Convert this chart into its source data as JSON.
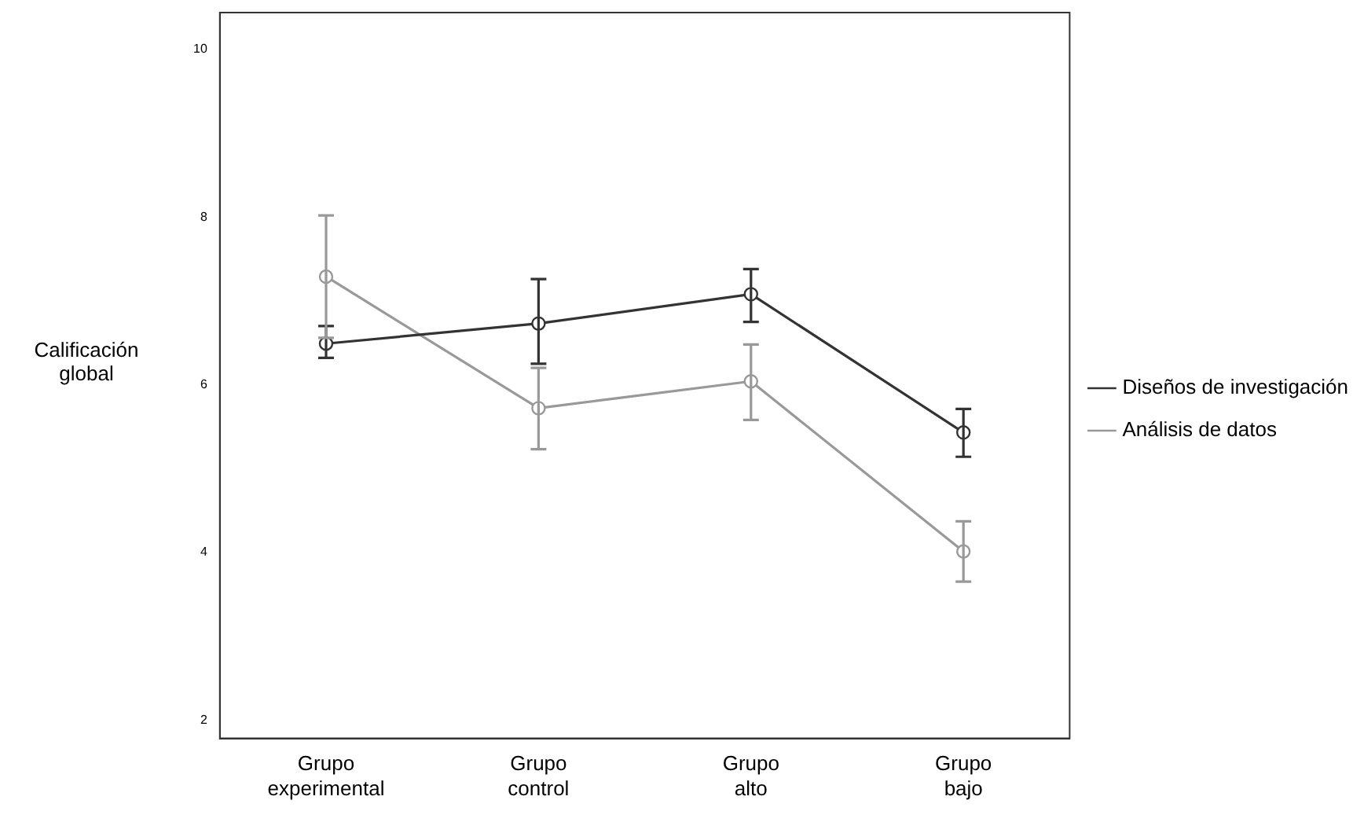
{
  "chart_data": {
    "type": "line",
    "ylabel": "Calificación global",
    "categories": [
      "Grupo experimental",
      "Grupo control",
      "Grupo alto",
      "Grupo bajo"
    ],
    "series": [
      {
        "name": "Diseños de investigación",
        "color": "#333333",
        "values": [
          6.49,
          6.73,
          7.08,
          5.43
        ],
        "errors": [
          [
            6.32,
            6.7
          ],
          [
            6.25,
            7.26
          ],
          [
            6.75,
            7.38
          ],
          [
            5.14,
            5.71
          ]
        ]
      },
      {
        "name": "Análisis de datos",
        "color": "#999999",
        "values": [
          7.29,
          5.72,
          6.04,
          4.01
        ],
        "errors": [
          [
            6.56,
            8.02
          ],
          [
            5.23,
            6.2
          ],
          [
            5.58,
            6.48
          ],
          [
            3.65,
            4.37
          ]
        ]
      }
    ],
    "ylim": [
      1.78,
      10.44
    ],
    "yticks": [
      2,
      4,
      6,
      8,
      10
    ],
    "grid": false,
    "legend": "right",
    "marker": "circle",
    "line_style": "solid"
  }
}
